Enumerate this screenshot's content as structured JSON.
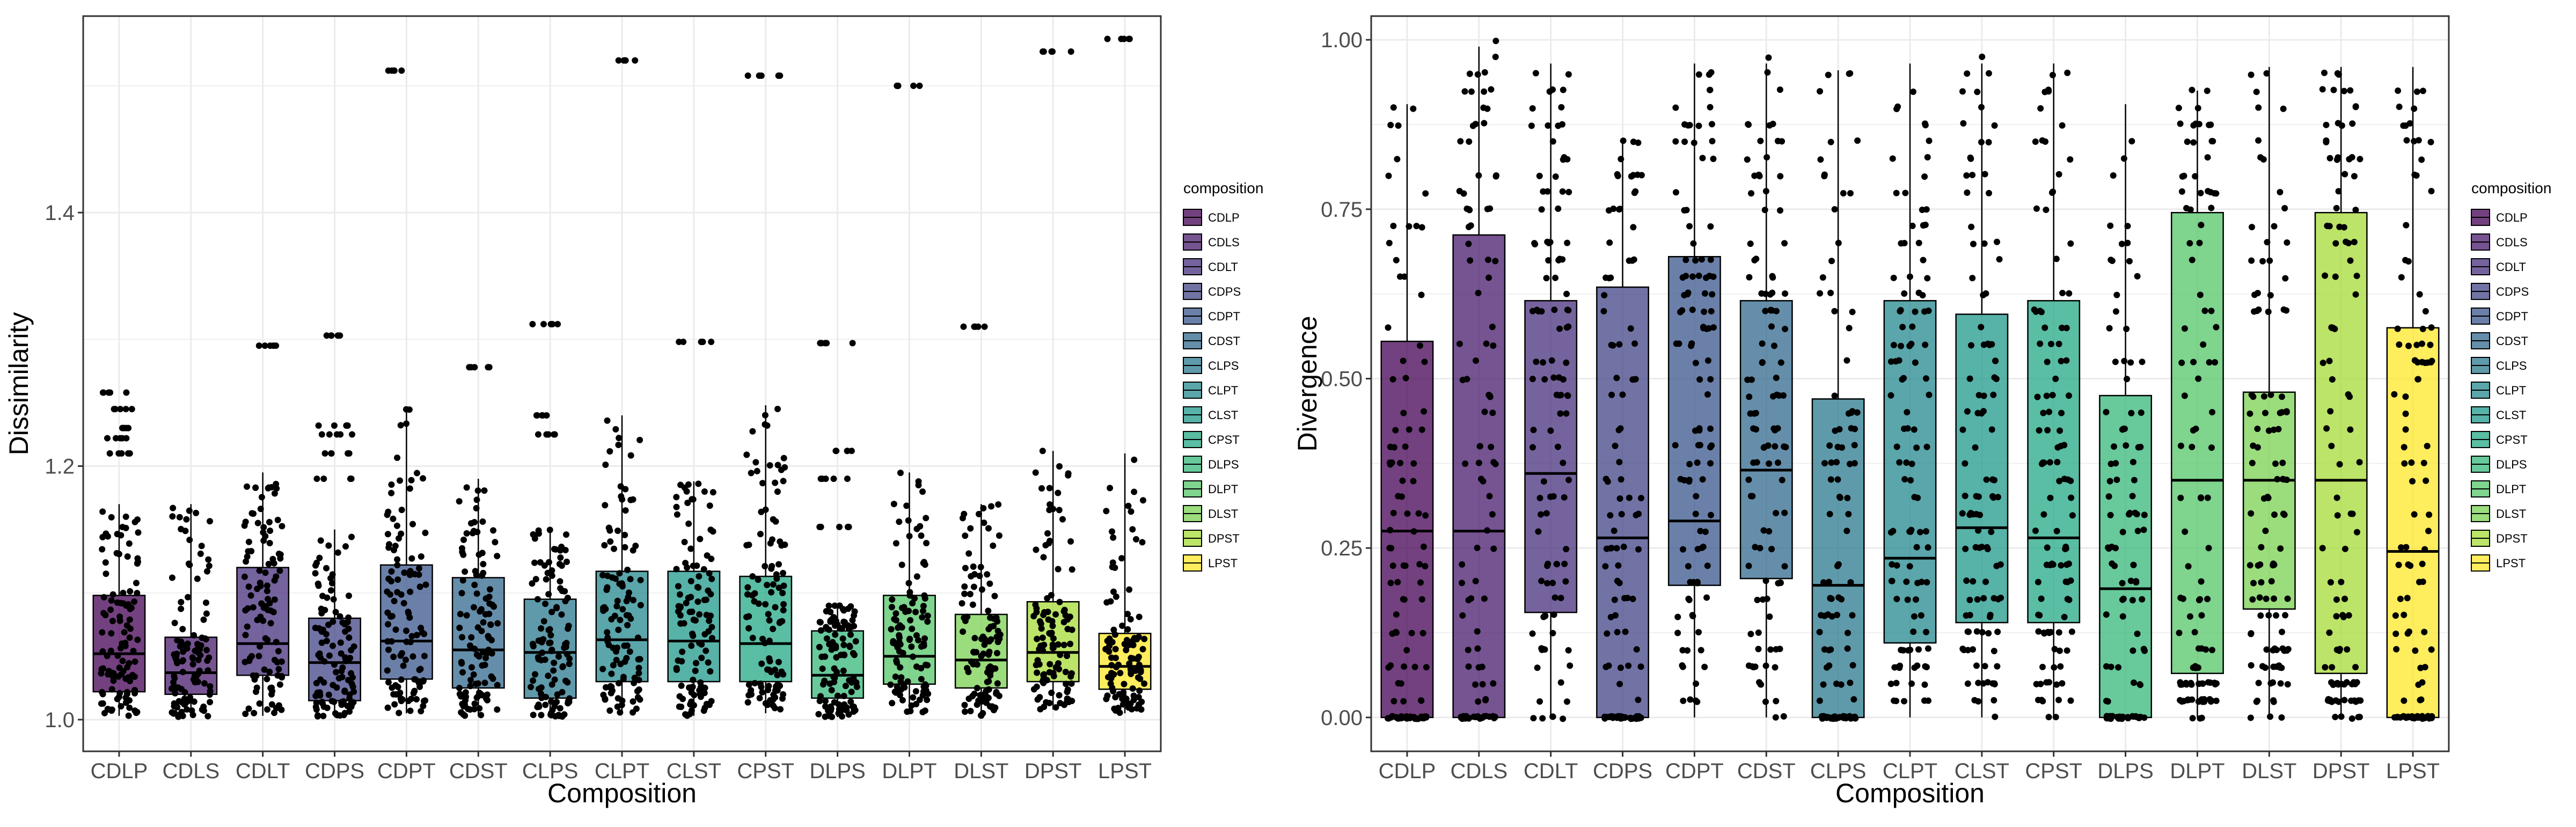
{
  "chart_data": [
    {
      "type": "boxplot",
      "xlabel": "Composition",
      "ylabel": "Dissimilarity",
      "ylim": [
        0.975,
        1.555
      ],
      "yticks": [
        1.0,
        1.2,
        1.4
      ],
      "ytick_labels": [
        "1.0",
        "1.2",
        "1.4"
      ],
      "categories": [
        "CDLP",
        "CDLS",
        "CDLT",
        "CDPS",
        "CDPT",
        "CDST",
        "CLPS",
        "CLPT",
        "CLST",
        "CPST",
        "DLPS",
        "DLPT",
        "DLST",
        "DPST",
        "LPST"
      ],
      "grid": true,
      "legend_placement": "right",
      "boxes": [
        {
          "q1": 1.022,
          "median": 1.052,
          "q3": 1.098,
          "whisker_low": 1.003,
          "whisker_high": 1.17,
          "outliers": [
            1.21,
            1.222,
            1.23,
            1.245,
            1.258
          ]
        },
        {
          "q1": 1.02,
          "median": 1.037,
          "q3": 1.065,
          "whisker_low": 1.002,
          "whisker_high": 1.17,
          "outliers": []
        },
        {
          "q1": 1.035,
          "median": 1.06,
          "q3": 1.12,
          "whisker_low": 1.003,
          "whisker_high": 1.195,
          "outliers": [
            1.295
          ]
        },
        {
          "q1": 1.015,
          "median": 1.045,
          "q3": 1.08,
          "whisker_low": 1.002,
          "whisker_high": 1.15,
          "outliers": [
            1.19,
            1.21,
            1.225,
            1.232,
            1.303
          ]
        },
        {
          "q1": 1.032,
          "median": 1.062,
          "q3": 1.122,
          "whisker_low": 1.005,
          "whisker_high": 1.245,
          "outliers": [
            1.512
          ]
        },
        {
          "q1": 1.025,
          "median": 1.055,
          "q3": 1.112,
          "whisker_low": 1.003,
          "whisker_high": 1.19,
          "outliers": [
            1.278
          ]
        },
        {
          "q1": 1.017,
          "median": 1.053,
          "q3": 1.095,
          "whisker_low": 1.002,
          "whisker_high": 1.15,
          "outliers": [
            1.225,
            1.24,
            1.312
          ]
        },
        {
          "q1": 1.03,
          "median": 1.063,
          "q3": 1.117,
          "whisker_low": 1.005,
          "whisker_high": 1.24,
          "outliers": [
            1.52
          ]
        },
        {
          "q1": 1.03,
          "median": 1.062,
          "q3": 1.117,
          "whisker_low": 1.003,
          "whisker_high": 1.188,
          "outliers": [
            1.298
          ]
        },
        {
          "q1": 1.03,
          "median": 1.06,
          "q3": 1.113,
          "whisker_low": 1.005,
          "whisker_high": 1.248,
          "outliers": [
            1.508
          ]
        },
        {
          "q1": 1.017,
          "median": 1.035,
          "q3": 1.07,
          "whisker_low": 1.002,
          "whisker_high": 1.09,
          "outliers": [
            1.152,
            1.19,
            1.212,
            1.297
          ]
        },
        {
          "q1": 1.028,
          "median": 1.05,
          "q3": 1.098,
          "whisker_low": 1.005,
          "whisker_high": 1.195,
          "outliers": [
            1.5
          ]
        },
        {
          "q1": 1.025,
          "median": 1.047,
          "q3": 1.083,
          "whisker_low": 1.003,
          "whisker_high": 1.17,
          "outliers": [
            1.31
          ]
        },
        {
          "q1": 1.03,
          "median": 1.053,
          "q3": 1.093,
          "whisker_low": 1.008,
          "whisker_high": 1.212,
          "outliers": [
            1.527
          ]
        },
        {
          "q1": 1.024,
          "median": 1.042,
          "q3": 1.068,
          "whisker_low": 1.005,
          "whisker_high": 1.21,
          "outliers": [
            1.537
          ]
        }
      ]
    },
    {
      "type": "boxplot",
      "xlabel": "Composition",
      "ylabel": "Divergence",
      "ylim": [
        -0.05,
        1.035
      ],
      "yticks": [
        0.0,
        0.25,
        0.5,
        0.75,
        1.0
      ],
      "ytick_labels": [
        "0.00",
        "0.25",
        "0.50",
        "0.75",
        "1.00"
      ],
      "categories": [
        "CDLP",
        "CDLS",
        "CDLT",
        "CDPS",
        "CDPT",
        "CDST",
        "CLPS",
        "CLPT",
        "CLST",
        "CPST",
        "DLPS",
        "DLPT",
        "DLST",
        "DPST",
        "LPST"
      ],
      "grid": true,
      "legend_placement": "right",
      "boxes": [
        {
          "q1": 0.0,
          "median": 0.275,
          "q3": 0.555,
          "whisker_low": 0.0,
          "whisker_high": 0.905,
          "outliers": []
        },
        {
          "q1": 0.0,
          "median": 0.275,
          "q3": 0.712,
          "whisker_low": 0.0,
          "whisker_high": 0.99,
          "outliers": []
        },
        {
          "q1": 0.155,
          "median": 0.36,
          "q3": 0.615,
          "whisker_low": 0.0,
          "whisker_high": 0.965,
          "outliers": []
        },
        {
          "q1": 0.0,
          "median": 0.265,
          "q3": 0.635,
          "whisker_low": 0.0,
          "whisker_high": 0.855,
          "outliers": []
        },
        {
          "q1": 0.195,
          "median": 0.29,
          "q3": 0.68,
          "whisker_low": 0.0,
          "whisker_high": 0.965,
          "outliers": []
        },
        {
          "q1": 0.205,
          "median": 0.365,
          "q3": 0.615,
          "whisker_low": 0.0,
          "whisker_high": 0.965,
          "outliers": []
        },
        {
          "q1": 0.0,
          "median": 0.195,
          "q3": 0.47,
          "whisker_low": 0.0,
          "whisker_high": 0.955,
          "outliers": []
        },
        {
          "q1": 0.11,
          "median": 0.235,
          "q3": 0.615,
          "whisker_low": 0.0,
          "whisker_high": 0.965,
          "outliers": []
        },
        {
          "q1": 0.14,
          "median": 0.28,
          "q3": 0.595,
          "whisker_low": 0.0,
          "whisker_high": 0.965,
          "outliers": []
        },
        {
          "q1": 0.14,
          "median": 0.265,
          "q3": 0.615,
          "whisker_low": 0.0,
          "whisker_high": 0.965,
          "outliers": []
        },
        {
          "q1": 0.0,
          "median": 0.19,
          "q3": 0.475,
          "whisker_low": 0.0,
          "whisker_high": 0.905,
          "outliers": []
        },
        {
          "q1": 0.065,
          "median": 0.35,
          "q3": 0.745,
          "whisker_low": 0.0,
          "whisker_high": 0.925,
          "outliers": []
        },
        {
          "q1": 0.16,
          "median": 0.35,
          "q3": 0.48,
          "whisker_low": 0.0,
          "whisker_high": 0.96,
          "outliers": []
        },
        {
          "q1": 0.065,
          "median": 0.35,
          "q3": 0.745,
          "whisker_low": 0.0,
          "whisker_high": 0.96,
          "outliers": []
        },
        {
          "q1": 0.0,
          "median": 0.245,
          "q3": 0.575,
          "whisker_low": 0.0,
          "whisker_high": 0.96,
          "outliers": []
        }
      ]
    }
  ],
  "legend": {
    "title": "composition",
    "items": [
      "CDLP",
      "CDLS",
      "CDLT",
      "CDPS",
      "CDPT",
      "CDST",
      "CLPS",
      "CLPT",
      "CLST",
      "CPST",
      "DLPS",
      "DLPT",
      "DLST",
      "DPST",
      "LPST"
    ]
  },
  "colors": {
    "fills": [
      "#440154",
      "#481A6C",
      "#472F7D",
      "#414487",
      "#39568C",
      "#31688E",
      "#2A788E",
      "#23888E",
      "#1F988B",
      "#22A884",
      "#35B779",
      "#54C568",
      "#7AD151",
      "#A5DB36",
      "#FDE725"
    ],
    "fill_opacity": 0.75,
    "panel_border": "#333333",
    "grid": "#EBEBEB",
    "point": "#000000",
    "axis_text": "#4D4D4D"
  }
}
